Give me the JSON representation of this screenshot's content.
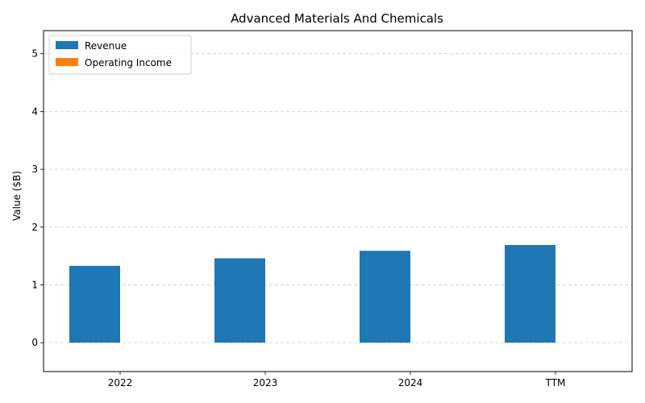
{
  "chart_data": {
    "type": "bar",
    "title": "Advanced Materials And Chemicals",
    "xlabel": "",
    "ylabel": "Value ($B)",
    "categories": [
      "2022",
      "2023",
      "2024",
      "TTM"
    ],
    "series": [
      {
        "name": "Revenue",
        "values": [
          1.33,
          1.46,
          1.59,
          1.69
        ],
        "color": "#1f77b4"
      },
      {
        "name": "Operating Income",
        "values": [
          0,
          0,
          0,
          0
        ],
        "color": "#ff7f0e"
      }
    ],
    "ylim": [
      -0.5,
      5.4
    ],
    "yticks": [
      0,
      1,
      2,
      3,
      4,
      5
    ],
    "ytick_labels": [
      "0",
      "1",
      "2",
      "3",
      "4",
      "5"
    ],
    "grid": "y-dashed",
    "legend_position": "upper-left"
  }
}
